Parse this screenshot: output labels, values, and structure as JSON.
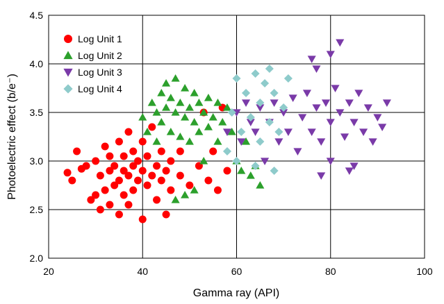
{
  "chart_data": {
    "type": "scatter",
    "xlabel": "Gamma ray (API)",
    "ylabel": "Photoelectric effect (b/e⁻)",
    "xlim": [
      20,
      100
    ],
    "ylim": [
      2.0,
      4.5
    ],
    "xticks": [
      "20",
      "40",
      "60",
      "80",
      "100"
    ],
    "yticks": [
      "2.0",
      "2.5",
      "3.0",
      "3.5",
      "4.0",
      "4.5"
    ],
    "grid": "major",
    "legend_position": "top-left",
    "series": [
      {
        "name": "Log Unit 1",
        "marker": "circle",
        "color": "#ff0000",
        "x_range": [
          24,
          58
        ],
        "y_range": [
          2.4,
          3.6
        ],
        "points": [
          [
            24,
            2.88
          ],
          [
            25,
            2.8
          ],
          [
            26,
            3.1
          ],
          [
            27,
            2.92
          ],
          [
            28,
            2.95
          ],
          [
            29,
            2.6
          ],
          [
            30,
            2.65
          ],
          [
            30,
            3.0
          ],
          [
            31,
            2.5
          ],
          [
            31,
            2.85
          ],
          [
            32,
            2.7
          ],
          [
            32,
            3.15
          ],
          [
            33,
            2.55
          ],
          [
            33,
            2.9
          ],
          [
            33,
            3.05
          ],
          [
            34,
            2.75
          ],
          [
            34,
            2.95
          ],
          [
            35,
            2.45
          ],
          [
            35,
            2.8
          ],
          [
            35,
            3.2
          ],
          [
            36,
            2.65
          ],
          [
            36,
            2.9
          ],
          [
            36,
            3.05
          ],
          [
            37,
            2.55
          ],
          [
            37,
            2.85
          ],
          [
            37,
            3.3
          ],
          [
            38,
            2.7
          ],
          [
            38,
            2.95
          ],
          [
            38,
            3.1
          ],
          [
            39,
            2.8
          ],
          [
            39,
            3.0
          ],
          [
            40,
            2.4
          ],
          [
            40,
            2.9
          ],
          [
            40,
            3.2
          ],
          [
            41,
            2.75
          ],
          [
            41,
            3.05
          ],
          [
            42,
            2.85
          ],
          [
            42,
            3.35
          ],
          [
            43,
            2.6
          ],
          [
            43,
            2.95
          ],
          [
            44,
            2.8
          ],
          [
            44,
            3.1
          ],
          [
            45,
            2.45
          ],
          [
            45,
            2.9
          ],
          [
            46,
            3.0
          ],
          [
            46,
            2.7
          ],
          [
            48,
            2.85
          ],
          [
            48,
            3.1
          ],
          [
            50,
            2.75
          ],
          [
            52,
            2.95
          ],
          [
            53,
            3.5
          ],
          [
            54,
            2.8
          ],
          [
            55,
            3.1
          ],
          [
            56,
            2.7
          ],
          [
            57,
            3.55
          ],
          [
            58,
            2.9
          ]
        ]
      },
      {
        "name": "Log Unit 2",
        "marker": "triangle-up",
        "color": "#2ca02c",
        "x_range": [
          40,
          67
        ],
        "y_range": [
          2.6,
          3.9
        ],
        "points": [
          [
            40,
            3.45
          ],
          [
            41,
            3.3
          ],
          [
            42,
            3.6
          ],
          [
            43,
            3.5
          ],
          [
            43,
            3.2
          ],
          [
            44,
            3.7
          ],
          [
            44,
            3.4
          ],
          [
            45,
            3.8
          ],
          [
            45,
            3.55
          ],
          [
            46,
            3.65
          ],
          [
            46,
            3.3
          ],
          [
            47,
            3.85
          ],
          [
            47,
            3.5
          ],
          [
            48,
            3.6
          ],
          [
            48,
            3.25
          ],
          [
            49,
            3.75
          ],
          [
            49,
            3.45
          ],
          [
            50,
            3.55
          ],
          [
            50,
            3.2
          ],
          [
            51,
            3.7
          ],
          [
            51,
            3.4
          ],
          [
            52,
            3.6
          ],
          [
            52,
            3.3
          ],
          [
            53,
            3.5
          ],
          [
            53,
            3.0
          ],
          [
            54,
            3.65
          ],
          [
            54,
            3.35
          ],
          [
            55,
            3.45
          ],
          [
            56,
            3.6
          ],
          [
            56,
            3.2
          ],
          [
            57,
            3.4
          ],
          [
            58,
            3.55
          ],
          [
            59,
            3.3
          ],
          [
            60,
            3.0
          ],
          [
            61,
            2.9
          ],
          [
            62,
            3.2
          ],
          [
            63,
            2.85
          ],
          [
            64,
            2.95
          ],
          [
            65,
            2.75
          ],
          [
            47,
            2.6
          ],
          [
            49,
            2.65
          ],
          [
            51,
            2.7
          ]
        ]
      },
      {
        "name": "Log Unit 3",
        "marker": "triangle-down",
        "color": "#7a3aa8",
        "x_range": [
          58,
          92
        ],
        "y_range": [
          2.8,
          4.25
        ],
        "points": [
          [
            58,
            3.3
          ],
          [
            60,
            3.5
          ],
          [
            61,
            3.2
          ],
          [
            62,
            3.6
          ],
          [
            63,
            3.4
          ],
          [
            64,
            3.3
          ],
          [
            65,
            3.55
          ],
          [
            66,
            3.0
          ],
          [
            67,
            3.4
          ],
          [
            68,
            3.6
          ],
          [
            69,
            3.2
          ],
          [
            70,
            3.5
          ],
          [
            71,
            3.3
          ],
          [
            72,
            3.65
          ],
          [
            73,
            3.1
          ],
          [
            74,
            3.45
          ],
          [
            75,
            3.7
          ],
          [
            76,
            3.3
          ],
          [
            77,
            3.55
          ],
          [
            77,
            3.95
          ],
          [
            78,
            3.2
          ],
          [
            79,
            3.6
          ],
          [
            80,
            3.4
          ],
          [
            80,
            3.0
          ],
          [
            81,
            3.75
          ],
          [
            82,
            3.5
          ],
          [
            82,
            4.22
          ],
          [
            83,
            3.25
          ],
          [
            84,
            3.6
          ],
          [
            85,
            3.4
          ],
          [
            85,
            2.95
          ],
          [
            86,
            3.7
          ],
          [
            87,
            3.3
          ],
          [
            88,
            3.55
          ],
          [
            89,
            3.2
          ],
          [
            90,
            3.45
          ],
          [
            91,
            3.35
          ],
          [
            92,
            3.6
          ],
          [
            76,
            4.05
          ],
          [
            80,
            4.1
          ],
          [
            78,
            2.85
          ],
          [
            84,
            2.9
          ]
        ]
      },
      {
        "name": "Log Unit 4",
        "marker": "diamond",
        "color": "#8ecbcb",
        "x_range": [
          58,
          72
        ],
        "y_range": [
          2.8,
          4.0
        ],
        "points": [
          [
            58,
            3.1
          ],
          [
            59,
            3.5
          ],
          [
            60,
            3.85
          ],
          [
            61,
            3.3
          ],
          [
            62,
            3.7
          ],
          [
            63,
            3.45
          ],
          [
            64,
            3.9
          ],
          [
            65,
            3.2
          ],
          [
            65,
            3.6
          ],
          [
            66,
            3.8
          ],
          [
            67,
            3.4
          ],
          [
            67,
            3.95
          ],
          [
            68,
            3.7
          ],
          [
            69,
            3.3
          ],
          [
            70,
            3.55
          ],
          [
            71,
            3.85
          ],
          [
            68,
            2.9
          ],
          [
            64,
            2.95
          ],
          [
            60,
            3.0
          ]
        ]
      }
    ]
  }
}
